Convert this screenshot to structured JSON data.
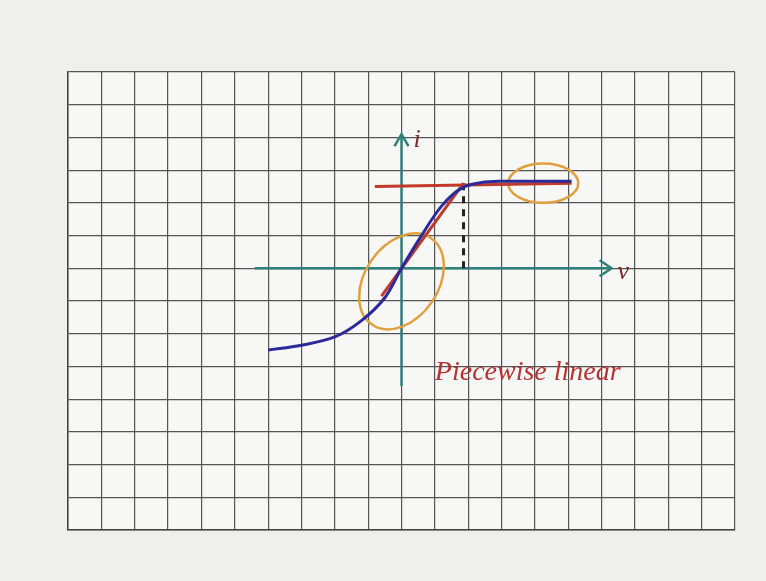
{
  "chart_data": {
    "type": "line",
    "x_label": "v",
    "y_label": "i",
    "annotations": [
      {
        "text": "Piecewise linear",
        "x": 1.0,
        "y": -3.2,
        "color": "#b83232"
      }
    ],
    "xlim": [
      -10,
      10
    ],
    "ylim": [
      -8,
      6
    ],
    "xticks": [
      -10,
      -9,
      -8,
      -7,
      -6,
      -5,
      -4,
      -3,
      -2,
      -1,
      0,
      1,
      2,
      3,
      4,
      5,
      6,
      7,
      8,
      9,
      10
    ],
    "yticks": [
      -8,
      -7,
      -6,
      -5,
      -4,
      -3,
      -2,
      -1,
      0,
      1,
      2,
      3,
      4,
      5,
      6
    ],
    "grid": true,
    "tick_labels": false,
    "axis_lines": {
      "x": [
        -4.4,
        6.3
      ],
      "y": [
        -3.6,
        4.1
      ],
      "color": "#2f7f7a"
    },
    "series": [
      {
        "color": "#2a2a9a",
        "line_style": "solid",
        "x": [
          -4,
          -3,
          -2,
          -1.2,
          -0.5,
          0,
          0.6,
          1.2,
          1.8,
          2.4,
          3,
          4,
          5.1
        ],
        "values": [
          -2.5,
          -2.35,
          -2.1,
          -1.6,
          -0.9,
          0,
          1.0,
          1.9,
          2.45,
          2.62,
          2.66,
          2.66,
          2.66
        ]
      },
      {
        "color": "#c0392b",
        "line_style": "solid",
        "x": [
          -0.6,
          1.86,
          1.86,
          -0.8,
          5.1
        ],
        "values": [
          -0.85,
          2.6,
          null,
          2.5,
          2.6
        ]
      },
      {
        "color": "#222222",
        "line_style": "dashed",
        "x": [
          1.86,
          1.86
        ],
        "values": [
          0,
          2.6
        ]
      }
    ],
    "highlights": [
      {
        "x": 0,
        "y": -0.4,
        "rx": 1.1,
        "ry": 1.6,
        "color": "#e0a040"
      },
      {
        "x": 4.25,
        "y": 2.6,
        "rx": 1.05,
        "ry": 0.6,
        "color": "#e0a040"
      }
    ]
  }
}
